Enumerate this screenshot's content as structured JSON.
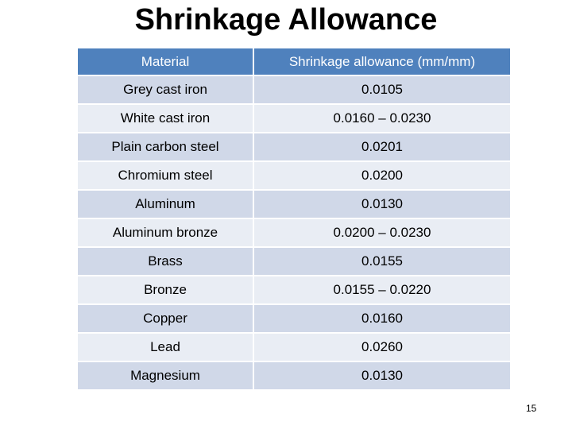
{
  "header": {
    "title": "Shrinkage Allowance"
  },
  "table": {
    "columns": [
      "Material",
      "Shrinkage allowance  (mm/mm)"
    ],
    "rows": [
      [
        "Grey cast iron",
        "0.0105"
      ],
      [
        "White cast iron",
        "0.0160 – 0.0230"
      ],
      [
        "Plain carbon steel",
        "0.0201"
      ],
      [
        "Chromium steel",
        "0.0200"
      ],
      [
        "Aluminum",
        "0.0130"
      ],
      [
        "Aluminum bronze",
        "0.0200 – 0.0230"
      ],
      [
        "Brass",
        "0.0155"
      ],
      [
        "Bronze",
        "0.0155 – 0.0220"
      ],
      [
        "Copper",
        "0.0160"
      ],
      [
        "Lead",
        "0.0260"
      ],
      [
        "Magnesium",
        "0.0130"
      ]
    ]
  },
  "footer": {
    "page_number": "15"
  }
}
